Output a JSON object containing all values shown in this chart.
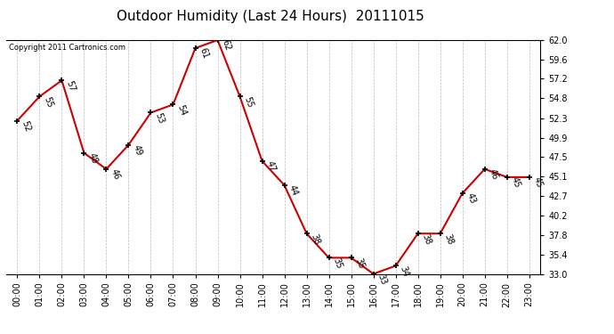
{
  "title": "Outdoor Humidity (Last 24 Hours)  20111015",
  "copyright": "Copyright 2011 Cartronics.com",
  "hours": [
    "00:00",
    "01:00",
    "02:00",
    "03:00",
    "04:00",
    "05:00",
    "06:00",
    "07:00",
    "08:00",
    "09:00",
    "10:00",
    "11:00",
    "12:00",
    "13:00",
    "14:00",
    "15:00",
    "16:00",
    "17:00",
    "18:00",
    "19:00",
    "20:00",
    "21:00",
    "22:00",
    "23:00"
  ],
  "values": [
    52,
    55,
    57,
    48,
    46,
    49,
    53,
    54,
    61,
    62,
    55,
    47,
    44,
    38,
    35,
    35,
    33,
    34,
    38,
    38,
    43,
    46,
    45,
    45
  ],
  "yticks": [
    33.0,
    35.4,
    37.8,
    40.2,
    42.7,
    45.1,
    47.5,
    49.9,
    52.3,
    54.8,
    57.2,
    59.6,
    62.0
  ],
  "ylim": [
    33.0,
    62.0
  ],
  "line_color": "#cc0000",
  "marker_color": "#000000",
  "bg_color": "#ffffff",
  "grid_color": "#bbbbbb",
  "title_fontsize": 11,
  "tick_fontsize": 7,
  "copy_fontsize": 6,
  "label_fontsize": 7
}
